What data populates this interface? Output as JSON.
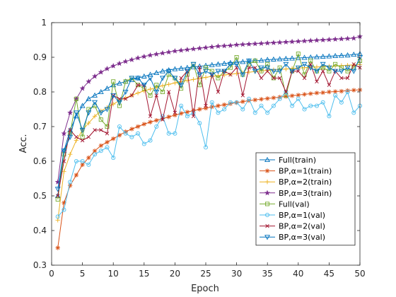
{
  "chart_data": {
    "type": "line",
    "title": "",
    "xlabel": "Epoch",
    "ylabel": "Acc.",
    "xlim": [
      0,
      50
    ],
    "ylim": [
      0.3,
      1.0
    ],
    "xticks": [
      0,
      5,
      10,
      15,
      20,
      25,
      30,
      35,
      40,
      45,
      50
    ],
    "yticks": [
      0.3,
      0.4,
      0.5,
      0.6,
      0.7,
      0.8,
      0.9,
      1.0
    ],
    "xtick_labels": [
      "0",
      "5",
      "10",
      "15",
      "20",
      "25",
      "30",
      "35",
      "40",
      "45",
      "50"
    ],
    "ytick_labels": [
      "0.3",
      "0.4",
      "0.5",
      "0.6",
      "0.7",
      "0.8",
      "0.9",
      "1"
    ],
    "grid": false,
    "legend_position": "bottom-right",
    "x": [
      1,
      2,
      3,
      4,
      5,
      6,
      7,
      8,
      9,
      10,
      11,
      12,
      13,
      14,
      15,
      16,
      17,
      18,
      19,
      20,
      21,
      22,
      23,
      24,
      25,
      26,
      27,
      28,
      29,
      30,
      31,
      32,
      33,
      34,
      35,
      36,
      37,
      38,
      39,
      40,
      41,
      42,
      43,
      44,
      45,
      46,
      47,
      48,
      49,
      50
    ],
    "series": [
      {
        "name": "Full(train)",
        "color": "#0072BD",
        "marker": "triangle-up",
        "values": [
          0.5,
          0.63,
          0.69,
          0.73,
          0.76,
          0.78,
          0.79,
          0.8,
          0.81,
          0.82,
          0.825,
          0.83,
          0.835,
          0.84,
          0.845,
          0.85,
          0.855,
          0.86,
          0.863,
          0.866,
          0.868,
          0.87,
          0.872,
          0.874,
          0.876,
          0.878,
          0.88,
          0.882,
          0.884,
          0.886,
          0.887,
          0.889,
          0.89,
          0.891,
          0.893,
          0.894,
          0.895,
          0.896,
          0.897,
          0.898,
          0.899,
          0.9,
          0.901,
          0.902,
          0.903,
          0.904,
          0.905,
          0.906,
          0.908,
          0.91
        ]
      },
      {
        "name": "BP,α=1(train)",
        "color": "#D95319",
        "marker": "asterisk",
        "values": [
          0.35,
          0.48,
          0.53,
          0.56,
          0.59,
          0.61,
          0.63,
          0.645,
          0.655,
          0.665,
          0.675,
          0.685,
          0.693,
          0.7,
          0.707,
          0.713,
          0.718,
          0.723,
          0.728,
          0.733,
          0.738,
          0.742,
          0.746,
          0.75,
          0.753,
          0.757,
          0.76,
          0.763,
          0.766,
          0.769,
          0.772,
          0.775,
          0.777,
          0.779,
          0.781,
          0.783,
          0.785,
          0.787,
          0.789,
          0.791,
          0.793,
          0.795,
          0.797,
          0.798,
          0.8,
          0.801,
          0.802,
          0.804,
          0.805,
          0.806
        ]
      },
      {
        "name": "BP,α=2(train)",
        "color": "#EDB120",
        "marker": "plus",
        "values": [
          0.43,
          0.57,
          0.62,
          0.66,
          0.69,
          0.71,
          0.73,
          0.745,
          0.755,
          0.765,
          0.775,
          0.783,
          0.79,
          0.797,
          0.803,
          0.808,
          0.813,
          0.818,
          0.822,
          0.826,
          0.83,
          0.833,
          0.836,
          0.839,
          0.842,
          0.845,
          0.847,
          0.849,
          0.851,
          0.853,
          0.855,
          0.857,
          0.859,
          0.861,
          0.862,
          0.864,
          0.865,
          0.866,
          0.868,
          0.869,
          0.87,
          0.871,
          0.872,
          0.873,
          0.874,
          0.875,
          0.876,
          0.877,
          0.878,
          0.879
        ]
      },
      {
        "name": "BP,α=3(train)",
        "color": "#7E2F8E",
        "marker": "star",
        "values": [
          0.54,
          0.68,
          0.74,
          0.78,
          0.81,
          0.83,
          0.845,
          0.857,
          0.867,
          0.875,
          0.882,
          0.888,
          0.893,
          0.898,
          0.902,
          0.906,
          0.909,
          0.912,
          0.915,
          0.918,
          0.92,
          0.922,
          0.924,
          0.926,
          0.928,
          0.93,
          0.932,
          0.933,
          0.934,
          0.936,
          0.937,
          0.938,
          0.939,
          0.94,
          0.941,
          0.942,
          0.943,
          0.944,
          0.945,
          0.946,
          0.947,
          0.948,
          0.949,
          0.95,
          0.951,
          0.952,
          0.953,
          0.954,
          0.955,
          0.96
        ]
      },
      {
        "name": "Full(val)",
        "color": "#77AC30",
        "marker": "square",
        "values": [
          0.49,
          0.62,
          0.68,
          0.78,
          0.67,
          0.75,
          0.76,
          0.72,
          0.7,
          0.83,
          0.76,
          0.83,
          0.84,
          0.82,
          0.81,
          0.79,
          0.82,
          0.8,
          0.85,
          0.84,
          0.81,
          0.85,
          0.88,
          0.82,
          0.87,
          0.86,
          0.84,
          0.86,
          0.87,
          0.9,
          0.85,
          0.88,
          0.89,
          0.86,
          0.88,
          0.84,
          0.87,
          0.79,
          0.86,
          0.91,
          0.85,
          0.89,
          0.86,
          0.87,
          0.86,
          0.88,
          0.87,
          0.86,
          0.87,
          0.89
        ]
      },
      {
        "name": "BP,α=1(val)",
        "color": "#4DBEEE",
        "marker": "circle",
        "values": [
          0.44,
          0.46,
          0.54,
          0.6,
          0.6,
          0.59,
          0.62,
          0.63,
          0.64,
          0.61,
          0.7,
          0.68,
          0.67,
          0.68,
          0.65,
          0.66,
          0.7,
          0.73,
          0.68,
          0.68,
          0.76,
          0.73,
          0.74,
          0.71,
          0.64,
          0.77,
          0.74,
          0.75,
          0.77,
          0.77,
          0.75,
          0.78,
          0.74,
          0.76,
          0.74,
          0.76,
          0.78,
          0.8,
          0.76,
          0.78,
          0.75,
          0.76,
          0.76,
          0.77,
          0.73,
          0.79,
          0.77,
          0.8,
          0.74,
          0.76
        ]
      },
      {
        "name": "BP,α=2(val)",
        "color": "#A2142F",
        "marker": "x",
        "values": [
          0.5,
          0.6,
          0.69,
          0.67,
          0.66,
          0.67,
          0.69,
          0.69,
          0.68,
          0.79,
          0.78,
          0.78,
          0.79,
          0.82,
          0.82,
          0.73,
          0.79,
          0.72,
          0.8,
          0.74,
          0.84,
          0.86,
          0.73,
          0.87,
          0.76,
          0.85,
          0.8,
          0.86,
          0.85,
          0.87,
          0.79,
          0.87,
          0.87,
          0.84,
          0.86,
          0.84,
          0.84,
          0.8,
          0.86,
          0.86,
          0.84,
          0.88,
          0.83,
          0.86,
          0.82,
          0.86,
          0.84,
          0.84,
          0.88,
          0.87
        ]
      },
      {
        "name": "BP,α=3(val)",
        "color": "#0072BD",
        "marker": "triangle-down",
        "values": [
          0.52,
          0.63,
          0.67,
          0.74,
          0.69,
          0.74,
          0.77,
          0.74,
          0.75,
          0.79,
          0.77,
          0.8,
          0.84,
          0.84,
          0.82,
          0.84,
          0.8,
          0.84,
          0.86,
          0.84,
          0.82,
          0.86,
          0.88,
          0.85,
          0.86,
          0.85,
          0.86,
          0.86,
          0.88,
          0.88,
          0.85,
          0.89,
          0.86,
          0.87,
          0.87,
          0.86,
          0.86,
          0.88,
          0.86,
          0.87,
          0.88,
          0.87,
          0.86,
          0.88,
          0.87,
          0.86,
          0.86,
          0.87,
          0.86,
          0.9
        ]
      }
    ]
  }
}
